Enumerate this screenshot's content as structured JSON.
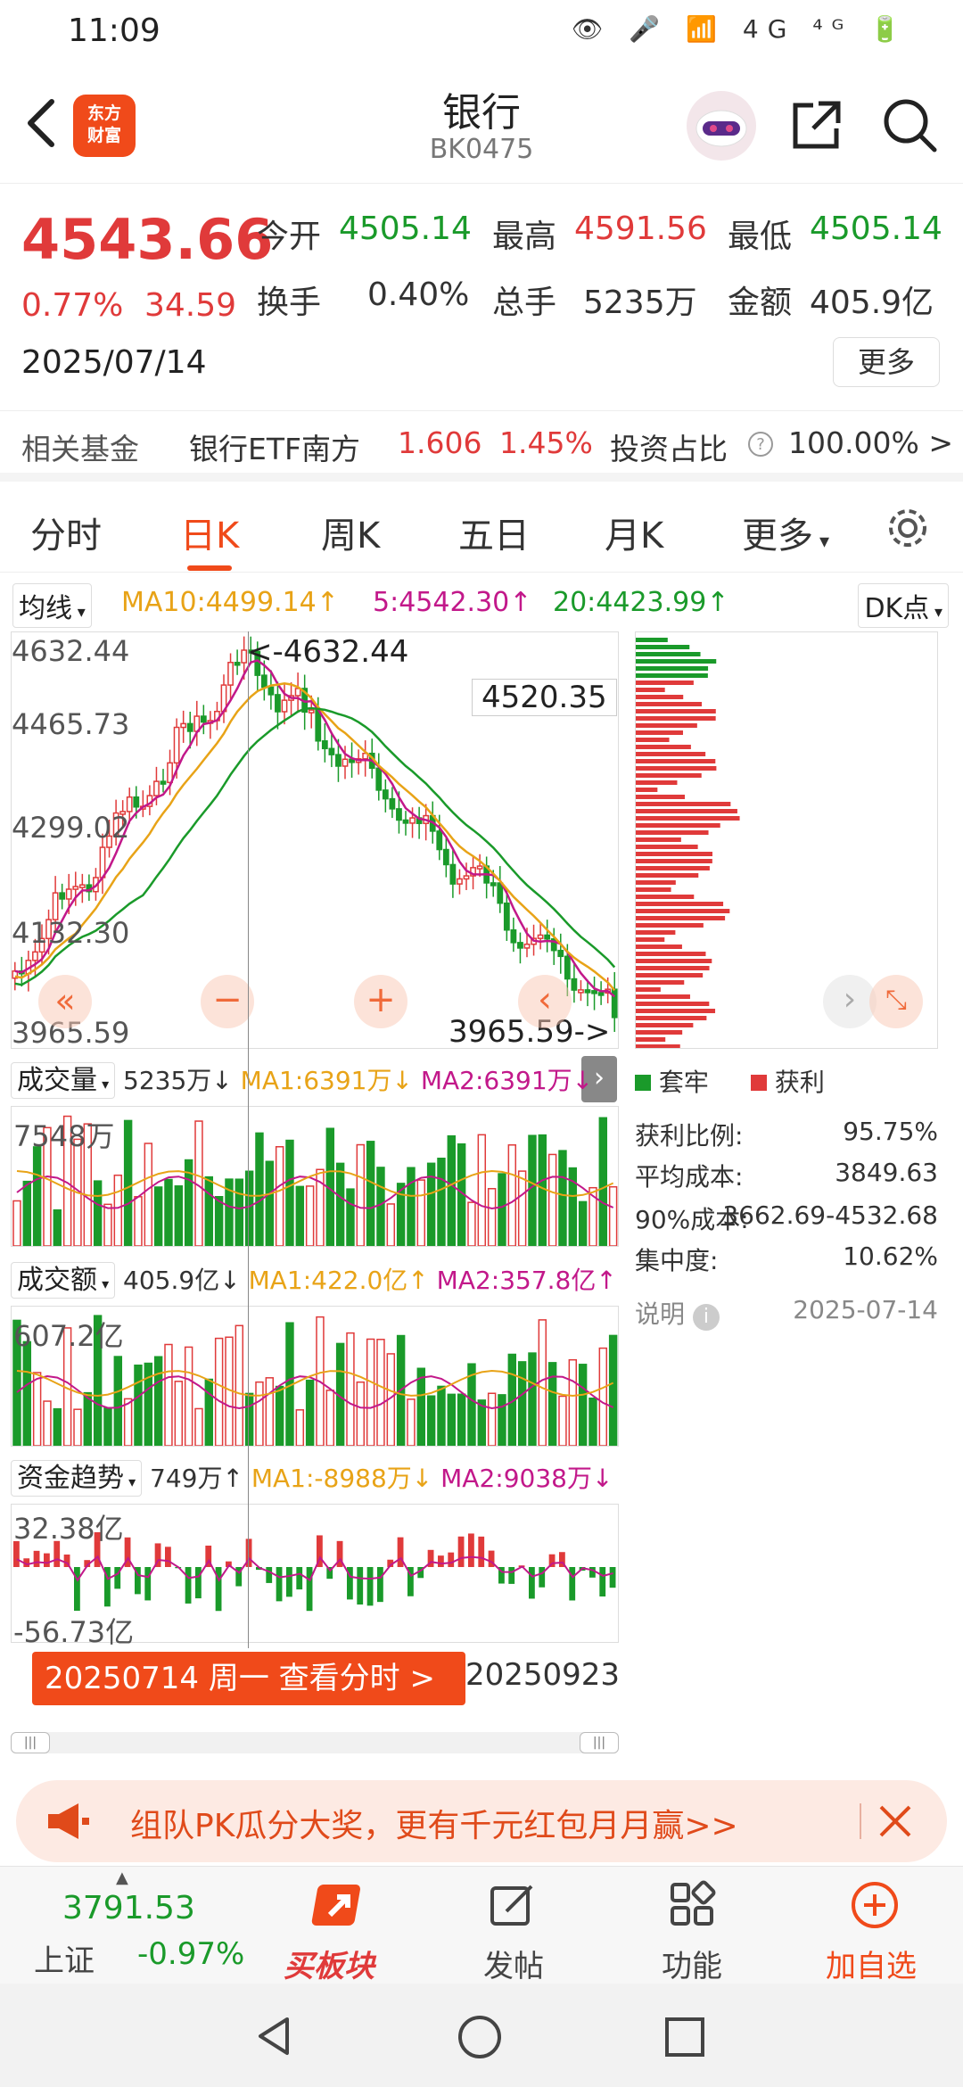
{
  "status": {
    "time": "11:09",
    "icons": "👁 🎤 📶 4G ⁴ᴳ 🔋"
  },
  "header": {
    "logo_line1": "东方",
    "logo_line2": "财富",
    "title": "银行",
    "code": "BK0475"
  },
  "quote": {
    "price": "4543.66",
    "change_pct": "0.77%",
    "change": "34.59",
    "date": "2025/07/14",
    "open_label": "今开",
    "open": "4505.14",
    "high_label": "最高",
    "high": "4591.56",
    "low_label": "最低",
    "low": "4505.14",
    "turnover_label": "换手",
    "turnover": "0.40%",
    "volume_label": "总手",
    "volume": "5235万",
    "amount_label": "金额",
    "amount": "405.9亿",
    "more_button": "更多"
  },
  "fund": {
    "label": "相关基金",
    "name": "银行ETF南方",
    "price": "1.606",
    "pct": "1.45%",
    "ratio_label": "投资占比",
    "ratio_value": "100.00% >"
  },
  "tabs": [
    "分时",
    "日K",
    "周K",
    "五日",
    "月K",
    "更多"
  ],
  "active_tab": 1,
  "ma_row": {
    "selector": "均线",
    "ma10": "MA10:4499.14↑",
    "ma5": "5:4542.30↑",
    "ma20": "20:4423.99↑",
    "dk": "DK点"
  },
  "main_chart": {
    "y_labels": [
      "4632.44",
      "4465.73",
      "4299.02",
      "4132.30",
      "3965.59"
    ],
    "high_annotation": "<-4632.44",
    "low_annotation": "3965.59->",
    "crosshair_price": "4520.35"
  },
  "volume": {
    "selector": "成交量",
    "value": "5235万↓",
    "ma1": "MA1:6391万↓",
    "ma2": "MA2:6391万↓",
    "y_label": "7548万"
  },
  "amount": {
    "selector": "成交额",
    "value": "405.9亿↓",
    "ma1": "MA1:422.0亿↑",
    "ma2": "MA2:357.8亿↑",
    "y_label": "607.2亿"
  },
  "capital": {
    "selector": "资金趋势",
    "value": "749万↑",
    "ma1": "MA1:-8988万↓",
    "ma2": "MA2:9038万↓",
    "y_top": "32.38亿",
    "y_bottom": "-56.73亿"
  },
  "date_tip": "20250714 周一 查看分时 >",
  "end_date": "20250923",
  "distribution": {
    "legend_trapped": "套牢",
    "legend_profit": "获利",
    "profit_ratio_label": "获利比例:",
    "profit_ratio": "95.75%",
    "avg_cost_label": "平均成本:",
    "avg_cost": "3849.63",
    "cost90_label": "90%成本:",
    "cost90": "3662.69-4532.68",
    "concentration_label": "集中度:",
    "concentration": "10.62%",
    "note_label": "说明",
    "note_date": "2025-07-14"
  },
  "promo": "组队PK瓜分大奖，更有千元红包月月赢>>",
  "bottom": {
    "index_value": "3791.53",
    "index_name": "上证",
    "index_pct": "-0.97%",
    "buy_label": "买板块",
    "post_label": "发帖",
    "func_label": "功能",
    "add_label": "加自选"
  },
  "colors": {
    "up": "#e03a3a",
    "down": "#1a9a2a",
    "accent": "#f04a1a"
  }
}
